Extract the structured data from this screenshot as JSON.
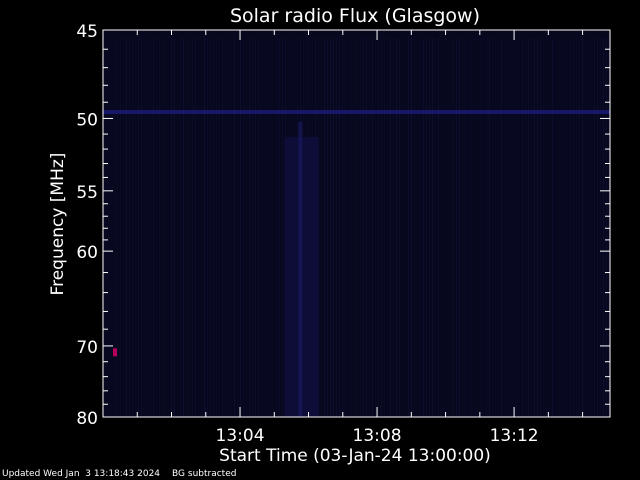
{
  "chart_data": {
    "type": "heatmap",
    "title": "Solar radio Flux (Glasgow)",
    "xlabel": "Start Time (03-Jan-24 13:00:00)",
    "ylabel": "Frequency [MHz]",
    "x_ticks": [
      "13:04",
      "13:08",
      "13:12"
    ],
    "x_tick_minutes": [
      4,
      8,
      12
    ],
    "xlim_minutes": [
      0.0,
      14.8
    ],
    "y_ticks": [
      45,
      50,
      55,
      60,
      70,
      80
    ],
    "ylim": [
      45,
      80
    ],
    "y_scale": "reciprocal",
    "grid": false,
    "colors": {
      "background": "#000000",
      "plot_fill": "#07071e",
      "band": "#1e1e82",
      "burst": "#0e0e3c",
      "hotspot": "#b4005a",
      "text": "#ffffff"
    },
    "features": {
      "band_mhz": 49.6,
      "burst_minutes": [
        5.3,
        6.3
      ],
      "hotspot": {
        "minute": 0.35,
        "mhz": 70.8
      }
    }
  },
  "footer": {
    "updated": "Updated Wed Jan  3 13:18:43 2024",
    "bg_note": "BG subtracted"
  }
}
